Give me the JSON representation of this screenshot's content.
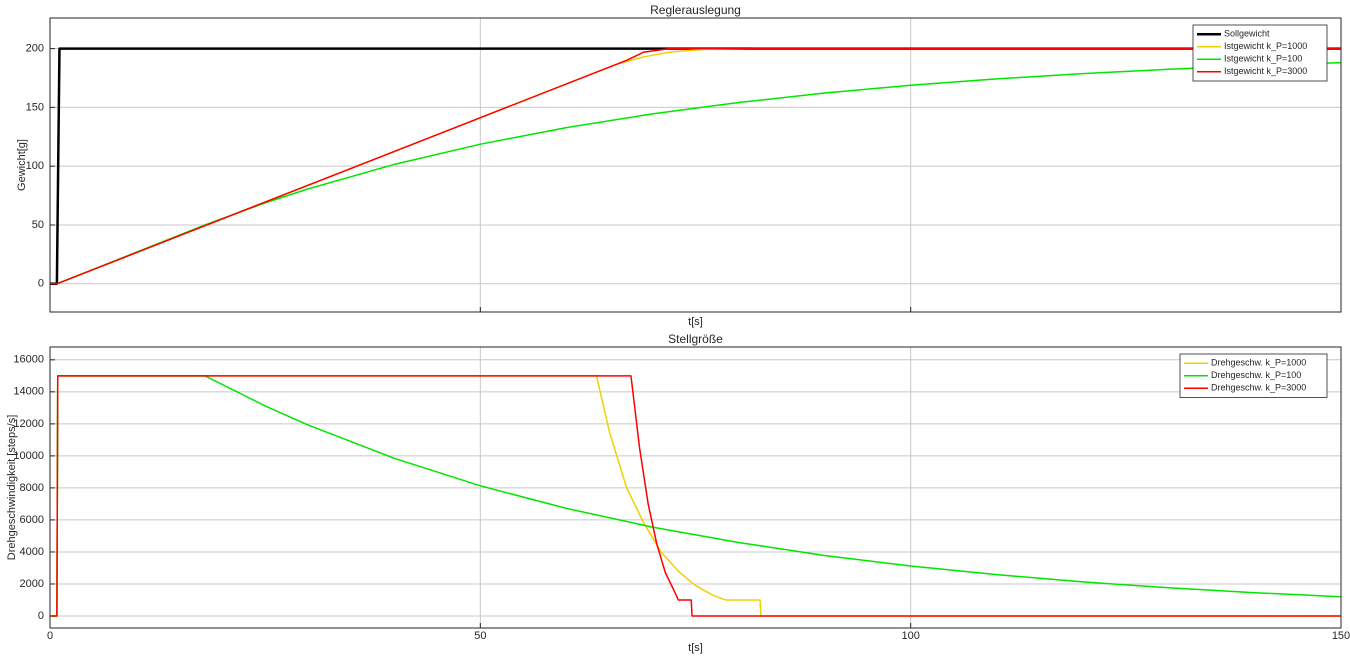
{
  "chart_data": [
    {
      "type": "line",
      "title": "Reglerauslegung",
      "xlabel": "t[s]",
      "ylabel": "Gewicht[g]",
      "xlim": [
        0,
        150
      ],
      "xticks": [
        0,
        50,
        100,
        150
      ],
      "show_xticklabels": false,
      "ylim": [
        -24,
        226
      ],
      "yticks": [
        0,
        50,
        100,
        150,
        200
      ],
      "grid": true,
      "legend": "upper right",
      "series": [
        {
          "name": "Sollgewicht",
          "color": "#000000",
          "width": 2.5,
          "x": [
            0,
            0.8,
            1.1,
            150
          ],
          "values": [
            0,
            0,
            200,
            200
          ]
        },
        {
          "name": "Istgewicht k_P=1000",
          "color": "#f2d000",
          "width": 1.5,
          "x": [
            0,
            0.8,
            63.5,
            66,
            69,
            72,
            76,
            82,
            150
          ],
          "values": [
            0,
            0,
            180,
            187,
            193,
            197,
            199.3,
            200,
            200
          ]
        },
        {
          "name": "Istgewicht k_P=100",
          "color": "#00e600",
          "width": 1.5,
          "x": [
            0,
            0.8,
            18,
            25,
            30,
            40,
            50,
            60,
            70,
            80,
            90,
            100,
            110,
            120,
            130,
            140,
            150
          ],
          "values": [
            0,
            0,
            50,
            68.8,
            80.7,
            101.5,
            118.7,
            132.8,
            144.5,
            154.1,
            162.2,
            168.8,
            174.2,
            178.7,
            182.4,
            185.5,
            188.1
          ]
        },
        {
          "name": "Istgewicht k_P=3000",
          "color": "#ff0000",
          "width": 1.5,
          "x": [
            0,
            0.8,
            67,
            69,
            72,
            150
          ],
          "values": [
            0,
            0,
            190,
            197,
            200,
            200
          ]
        }
      ]
    },
    {
      "type": "line",
      "title": "Stellgröße",
      "xlabel": "t[s]",
      "ylabel": "Drehgeschwindigkeit [steps/s]",
      "xlim": [
        0,
        150
      ],
      "xticks": [
        0,
        50,
        100,
        150
      ],
      "show_xticklabels": true,
      "ylim": [
        -750,
        16800
      ],
      "yticks": [
        0,
        2000,
        4000,
        6000,
        8000,
        10000,
        12000,
        14000,
        16000
      ],
      "grid": true,
      "legend": "upper right",
      "series": [
        {
          "name": "Drehgeschw. k_P=1000",
          "color": "#f2d000",
          "width": 1.5,
          "x": [
            0,
            0.8,
            0.9,
            63.5,
            65,
            67,
            69,
            71,
            73,
            75,
            77,
            78.5,
            82.5,
            82.6,
            150
          ],
          "values": [
            0,
            0,
            15000,
            15000,
            11500,
            8000,
            5800,
            4000,
            2800,
            1900,
            1300,
            1000,
            1000,
            0,
            0
          ]
        },
        {
          "name": "Drehgeschw. k_P=100",
          "color": "#00e600",
          "width": 1.5,
          "x": [
            0,
            0.8,
            0.9,
            18,
            25,
            30,
            40,
            50,
            60,
            70,
            80,
            90,
            100,
            110,
            120,
            130,
            140,
            150
          ],
          "values": [
            0,
            0,
            15000,
            15000,
            13120,
            11925,
            9850,
            8130,
            6720,
            5550,
            4590,
            3780,
            3120,
            2580,
            2130,
            1760,
            1455,
            1200
          ]
        },
        {
          "name": "Drehgeschw. k_P=3000",
          "color": "#ff0000",
          "width": 1.5,
          "x": [
            0,
            0.8,
            0.9,
            67.5,
            68.5,
            69.5,
            70.5,
            71.5,
            72.5,
            73,
            74.5,
            74.6,
            150
          ],
          "values": [
            0,
            0,
            15000,
            15000,
            10500,
            7000,
            4500,
            2700,
            1600,
            1000,
            1000,
            0,
            0
          ]
        }
      ]
    }
  ]
}
